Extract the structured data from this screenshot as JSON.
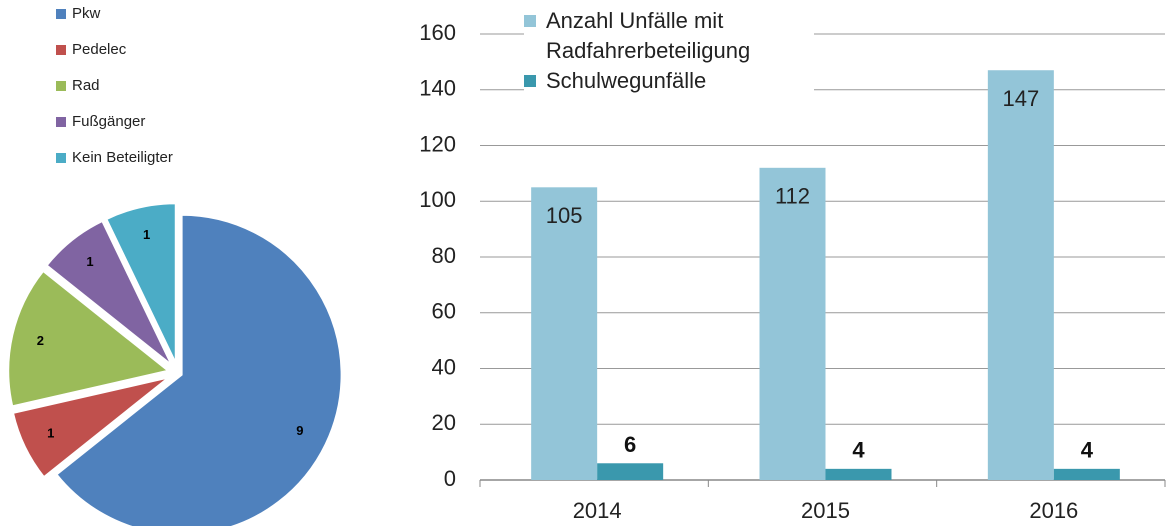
{
  "chart_data": [
    {
      "type": "pie",
      "categories": [
        "Pkw",
        "Pedelec",
        "Rad",
        "Fußgänger",
        "Kein Beteiligter"
      ],
      "values": [
        9,
        1,
        2,
        1,
        1
      ],
      "colors": [
        "#4f81bd",
        "#c0504d",
        "#9bbb59",
        "#8064a2",
        "#4bacc6"
      ],
      "legend": "top-left"
    },
    {
      "type": "bar",
      "categories": [
        "2014",
        "2015",
        "2016"
      ],
      "series": [
        {
          "name": "Anzahl Unfälle mit Radfahrerbeteiligung",
          "color": "#93c5d8",
          "values": [
            105,
            112,
            147
          ]
        },
        {
          "name": "Schulwegunfälle",
          "color": "#3a98ad",
          "values": [
            6,
            4,
            4
          ]
        }
      ],
      "ylim": [
        0,
        160
      ],
      "yticks": [
        0,
        20,
        40,
        60,
        80,
        100,
        120,
        140,
        160
      ],
      "grid": true,
      "legend": "top"
    }
  ]
}
